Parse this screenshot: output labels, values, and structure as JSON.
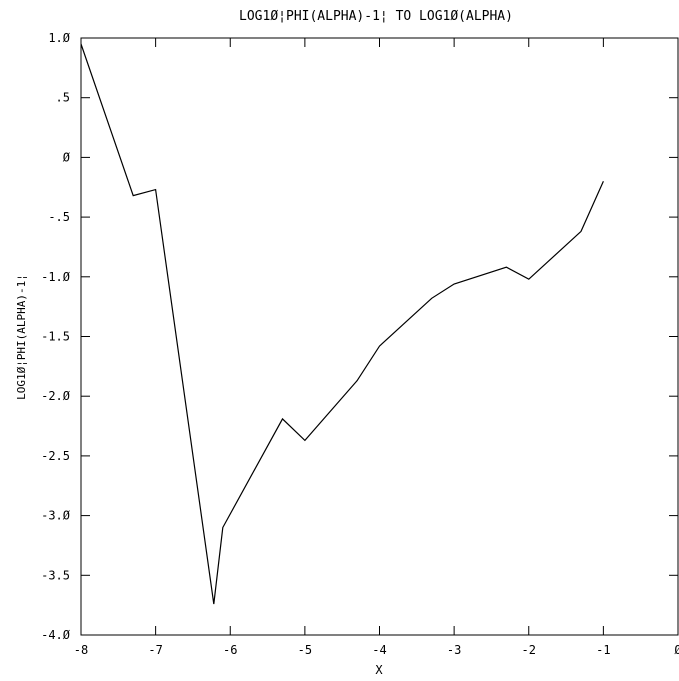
{
  "chart_data": {
    "type": "line",
    "title": "LOG1Ø¦PHI(ALPHA)-1¦ TO LOG1Ø(ALPHA)",
    "xlabel": "X",
    "ylabel": "LOG1Ø¦PHI(ALPHA)-1¦",
    "xlim": [
      -8,
      0
    ],
    "ylim": [
      -4.0,
      1.0
    ],
    "x_ticks": [
      -8,
      -7,
      -6,
      -5,
      -4,
      -3,
      -2,
      -1,
      0
    ],
    "x_tick_labels": [
      "-8",
      "-7",
      "-6",
      "-5",
      "-4",
      "-3",
      "-2",
      "-1",
      "Ø"
    ],
    "y_ticks": [
      1.0,
      0.5,
      0,
      -0.5,
      -1.0,
      -1.5,
      -2.0,
      -2.5,
      -3.0,
      -3.5,
      -4.0
    ],
    "y_tick_labels": [
      "1.Ø",
      ".5",
      "Ø",
      "-.5",
      "-1.Ø",
      "-1.5",
      "-2.Ø",
      "-2.5",
      "-3.Ø",
      "-3.5",
      "-4.Ø"
    ],
    "grid": false,
    "series": [
      {
        "x": [
          -8.0,
          -7.3,
          -7.0,
          -6.22,
          -6.1,
          -5.3,
          -5.0,
          -4.3,
          -4.0,
          -3.3,
          -3.0,
          -2.3,
          -2.0,
          -1.3,
          -1.0
        ],
        "y": [
          0.95,
          -0.32,
          -0.27,
          -3.74,
          -3.1,
          -2.19,
          -2.37,
          -1.87,
          -1.58,
          -1.18,
          -1.06,
          -0.92,
          -1.02,
          -0.62,
          -0.2
        ]
      }
    ]
  }
}
